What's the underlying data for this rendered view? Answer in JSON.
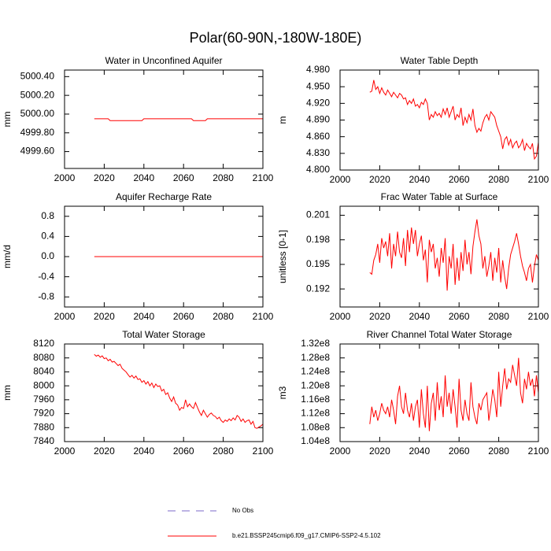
{
  "title": "Polar(60-90N,-180W-180E)",
  "legend": [
    {
      "name": "No Obs",
      "color": "#7b68c8",
      "dash": true
    },
    {
      "name": "b.e21.BSSP245cmip6.f09_g17.CMIP6-SSP2-4.5.102",
      "color": "#ff0000",
      "dash": false
    }
  ],
  "chart_data": [
    {
      "type": "line",
      "title": "Water in Unconfined Aquifer",
      "ylabel": "mm",
      "color": "#ff0000",
      "xlim": [
        2000,
        2100
      ],
      "xticks": [
        2000,
        2020,
        2040,
        2060,
        2080,
        2100
      ],
      "ylim": [
        4999.42,
        5000.47
      ],
      "yticks": [
        {
          "value": 4999.6,
          "label": "4999.60"
        },
        {
          "value": 4999.8,
          "label": "4999.80"
        },
        {
          "value": 5000.0,
          "label": "5000.00"
        },
        {
          "value": 5000.2,
          "label": "5000.20"
        },
        {
          "value": 5000.4,
          "label": "5000.40"
        }
      ],
      "x": [
        2015,
        2016,
        2017,
        2018,
        2019,
        2020,
        2021,
        2022,
        2023,
        2024,
        2025,
        2026,
        2027,
        2028,
        2029,
        2030,
        2031,
        2032,
        2033,
        2034,
        2035,
        2036,
        2037,
        2038,
        2039,
        2040,
        2041,
        2042,
        2043,
        2044,
        2045,
        2046,
        2047,
        2048,
        2049,
        2050,
        2051,
        2052,
        2053,
        2054,
        2055,
        2056,
        2057,
        2058,
        2059,
        2060,
        2061,
        2062,
        2063,
        2064,
        2065,
        2066,
        2067,
        2068,
        2069,
        2070,
        2071,
        2072,
        2073,
        2074,
        2075,
        2076,
        2077,
        2078,
        2079,
        2080,
        2081,
        2082,
        2083,
        2084,
        2085,
        2086,
        2087,
        2088,
        2089,
        2090,
        2091,
        2092,
        2093,
        2094,
        2095,
        2096,
        2097,
        2098,
        2099,
        2100
      ],
      "values": [
        4999.95,
        4999.95,
        4999.95,
        4999.95,
        4999.95,
        4999.95,
        4999.95,
        4999.95,
        4999.93,
        4999.93,
        4999.93,
        4999.93,
        4999.93,
        4999.93,
        4999.93,
        4999.93,
        4999.93,
        4999.93,
        4999.93,
        4999.93,
        4999.93,
        4999.93,
        4999.93,
        4999.93,
        4999.93,
        4999.95,
        4999.95,
        4999.95,
        4999.95,
        4999.95,
        4999.95,
        4999.95,
        4999.95,
        4999.95,
        4999.95,
        4999.95,
        4999.95,
        4999.95,
        4999.95,
        4999.95,
        4999.95,
        4999.95,
        4999.95,
        4999.95,
        4999.95,
        4999.95,
        4999.95,
        4999.95,
        4999.95,
        4999.95,
        4999.93,
        4999.93,
        4999.93,
        4999.93,
        4999.93,
        4999.93,
        4999.93,
        4999.95,
        4999.95,
        4999.95,
        4999.95,
        4999.95,
        4999.95,
        4999.95,
        4999.95,
        4999.95,
        4999.95,
        4999.95,
        4999.95,
        4999.95,
        4999.95,
        4999.95,
        4999.95,
        4999.95,
        4999.95,
        4999.95,
        4999.95,
        4999.95,
        4999.95,
        4999.95,
        4999.95,
        4999.95,
        4999.95,
        4999.95,
        4999.95,
        4999.95
      ]
    },
    {
      "type": "line",
      "title": "Water Table Depth",
      "ylabel": "m",
      "color": "#ff0000",
      "xlim": [
        2000,
        2100
      ],
      "xticks": [
        2000,
        2020,
        2040,
        2060,
        2080,
        2100
      ],
      "ylim": [
        4.8,
        4.98
      ],
      "yticks": [
        {
          "value": 4.8,
          "label": "4.800"
        },
        {
          "value": 4.83,
          "label": "4.830"
        },
        {
          "value": 4.86,
          "label": "4.860"
        },
        {
          "value": 4.89,
          "label": "4.890"
        },
        {
          "value": 4.92,
          "label": "4.920"
        },
        {
          "value": 4.95,
          "label": "4.950"
        },
        {
          "value": 4.98,
          "label": "4.980"
        }
      ],
      "x": [
        2015,
        2016,
        2017,
        2018,
        2019,
        2020,
        2021,
        2022,
        2023,
        2024,
        2025,
        2026,
        2027,
        2028,
        2029,
        2030,
        2031,
        2032,
        2033,
        2034,
        2035,
        2036,
        2037,
        2038,
        2039,
        2040,
        2041,
        2042,
        2043,
        2044,
        2045,
        2046,
        2047,
        2048,
        2049,
        2050,
        2051,
        2052,
        2053,
        2054,
        2055,
        2056,
        2057,
        2058,
        2059,
        2060,
        2061,
        2062,
        2063,
        2064,
        2065,
        2066,
        2067,
        2068,
        2069,
        2070,
        2071,
        2072,
        2073,
        2074,
        2075,
        2076,
        2077,
        2078,
        2079,
        2080,
        2081,
        2082,
        2083,
        2084,
        2085,
        2086,
        2087,
        2088,
        2089,
        2090,
        2091,
        2092,
        2093,
        2094,
        2095,
        2096,
        2097,
        2098,
        2099,
        2100
      ],
      "values": [
        4.94,
        4.942,
        4.962,
        4.945,
        4.95,
        4.938,
        4.948,
        4.94,
        4.935,
        4.944,
        4.938,
        4.932,
        4.94,
        4.935,
        4.93,
        4.938,
        4.935,
        4.928,
        4.93,
        4.918,
        4.925,
        4.92,
        4.928,
        4.915,
        4.918,
        4.912,
        4.922,
        4.918,
        4.928,
        4.92,
        4.89,
        4.9,
        4.895,
        4.905,
        4.898,
        4.902,
        4.895,
        4.91,
        4.9,
        4.912,
        4.895,
        4.905,
        4.915,
        4.89,
        4.9,
        4.895,
        4.912,
        4.88,
        4.895,
        4.885,
        4.9,
        4.89,
        4.91,
        4.88,
        4.868,
        4.875,
        4.87,
        4.885,
        4.895,
        4.9,
        4.89,
        4.905,
        4.9,
        4.895,
        4.88,
        4.87,
        4.86,
        4.838,
        4.855,
        4.86,
        4.845,
        4.855,
        4.84,
        4.848,
        4.852,
        4.84,
        4.845,
        4.855,
        4.835,
        4.848,
        4.842,
        4.838,
        4.848,
        4.82,
        4.825,
        4.85
      ]
    },
    {
      "type": "line",
      "title": "Aquifer Recharge Rate",
      "ylabel": "mm/d",
      "color": "#ff0000",
      "xlim": [
        2000,
        2100
      ],
      "xticks": [
        2000,
        2020,
        2040,
        2060,
        2080,
        2100
      ],
      "ylim": [
        -1.0,
        1.0
      ],
      "yticks": [
        -0.8,
        -0.4,
        {
          "value": 0,
          "label": "0.0"
        },
        0.4,
        0.8
      ],
      "x": [
        2015,
        2016,
        2017,
        2018,
        2019,
        2020,
        2021,
        2022,
        2023,
        2024,
        2025,
        2026,
        2027,
        2028,
        2029,
        2030,
        2031,
        2032,
        2033,
        2034,
        2035,
        2036,
        2037,
        2038,
        2039,
        2040,
        2041,
        2042,
        2043,
        2044,
        2045,
        2046,
        2047,
        2048,
        2049,
        2050,
        2051,
        2052,
        2053,
        2054,
        2055,
        2056,
        2057,
        2058,
        2059,
        2060,
        2061,
        2062,
        2063,
        2064,
        2065,
        2066,
        2067,
        2068,
        2069,
        2070,
        2071,
        2072,
        2073,
        2074,
        2075,
        2076,
        2077,
        2078,
        2079,
        2080,
        2081,
        2082,
        2083,
        2084,
        2085,
        2086,
        2087,
        2088,
        2089,
        2090,
        2091,
        2092,
        2093,
        2094,
        2095,
        2096,
        2097,
        2098,
        2099,
        2100
      ],
      "values": [
        0,
        0,
        0,
        0,
        0,
        0,
        0,
        0,
        0,
        0,
        0,
        0,
        0,
        0,
        0,
        0,
        0,
        0,
        0,
        0,
        0,
        0,
        0,
        0,
        0,
        0,
        0,
        0,
        0,
        0,
        0,
        0,
        0,
        0,
        0,
        0,
        0,
        0,
        0,
        0,
        0,
        0,
        0,
        0,
        0,
        0,
        0,
        0,
        0,
        0,
        0,
        0,
        0,
        0,
        0,
        0,
        0,
        0,
        0,
        0,
        0,
        0,
        0,
        0,
        0,
        0,
        0,
        0,
        0,
        0,
        0,
        0,
        0,
        0,
        0,
        0,
        0,
        0,
        0,
        0,
        0,
        0,
        0,
        0,
        0,
        0
      ]
    },
    {
      "type": "line",
      "title": "Frac Water Table at Surface",
      "ylabel": "unitless [0-1]",
      "color": "#ff0000",
      "xlim": [
        2000,
        2100
      ],
      "xticks": [
        2000,
        2020,
        2040,
        2060,
        2080,
        2100
      ],
      "ylim": [
        0.1898,
        0.2021
      ],
      "yticks": [
        0.192,
        0.195,
        0.198,
        0.201
      ],
      "x": [
        2015,
        2016,
        2017,
        2018,
        2019,
        2020,
        2021,
        2022,
        2023,
        2024,
        2025,
        2026,
        2027,
        2028,
        2029,
        2030,
        2031,
        2032,
        2033,
        2034,
        2035,
        2036,
        2037,
        2038,
        2039,
        2040,
        2041,
        2042,
        2043,
        2044,
        2045,
        2046,
        2047,
        2048,
        2049,
        2050,
        2051,
        2052,
        2053,
        2054,
        2055,
        2056,
        2057,
        2058,
        2059,
        2060,
        2061,
        2062,
        2063,
        2064,
        2065,
        2066,
        2067,
        2068,
        2069,
        2070,
        2071,
        2072,
        2073,
        2074,
        2075,
        2076,
        2077,
        2078,
        2079,
        2080,
        2081,
        2082,
        2083,
        2084,
        2085,
        2086,
        2087,
        2088,
        2089,
        2090,
        2091,
        2092,
        2093,
        2094,
        2095,
        2096,
        2097,
        2098,
        2099,
        2100
      ],
      "values": [
        0.194,
        0.1938,
        0.1955,
        0.1962,
        0.1975,
        0.1952,
        0.1982,
        0.197,
        0.1978,
        0.196,
        0.1988,
        0.1945,
        0.1975,
        0.196,
        0.199,
        0.1965,
        0.1958,
        0.1982,
        0.1948,
        0.1992,
        0.1965,
        0.1995,
        0.1975,
        0.1992,
        0.196,
        0.1975,
        0.1985,
        0.1955,
        0.1968,
        0.1928,
        0.198,
        0.1965,
        0.1975,
        0.1945,
        0.1958,
        0.1935,
        0.197,
        0.1952,
        0.1982,
        0.1918,
        0.196,
        0.1945,
        0.1975,
        0.1925,
        0.1958,
        0.193,
        0.1965,
        0.1942,
        0.198,
        0.195,
        0.1965,
        0.1938,
        0.1972,
        0.199,
        0.2005,
        0.1985,
        0.1975,
        0.1945,
        0.196,
        0.1935,
        0.1948,
        0.1965,
        0.193,
        0.1958,
        0.194,
        0.197,
        0.1928,
        0.1955,
        0.1935,
        0.192,
        0.1945,
        0.1962,
        0.197,
        0.1978,
        0.1988,
        0.1975,
        0.196,
        0.1948,
        0.194,
        0.193,
        0.1945,
        0.195,
        0.1928,
        0.1948,
        0.1962,
        0.1955
      ]
    },
    {
      "type": "line",
      "title": "Total Water Storage",
      "ylabel": "mm",
      "color": "#ff0000",
      "xlim": [
        2000,
        2100
      ],
      "xticks": [
        2000,
        2020,
        2040,
        2060,
        2080,
        2100
      ],
      "ylim": [
        7840,
        8120
      ],
      "yticks": [
        7840,
        7880,
        7920,
        7960,
        8000,
        8040,
        8080,
        8120
      ],
      "x": [
        2015,
        2016,
        2017,
        2018,
        2019,
        2020,
        2021,
        2022,
        2023,
        2024,
        2025,
        2026,
        2027,
        2028,
        2029,
        2030,
        2031,
        2032,
        2033,
        2034,
        2035,
        2036,
        2037,
        2038,
        2039,
        2040,
        2041,
        2042,
        2043,
        2044,
        2045,
        2046,
        2047,
        2048,
        2049,
        2050,
        2051,
        2052,
        2053,
        2054,
        2055,
        2056,
        2057,
        2058,
        2059,
        2060,
        2061,
        2062,
        2063,
        2064,
        2065,
        2066,
        2067,
        2068,
        2069,
        2070,
        2071,
        2072,
        2073,
        2074,
        2075,
        2076,
        2077,
        2078,
        2079,
        2080,
        2081,
        2082,
        2083,
        2084,
        2085,
        2086,
        2087,
        2088,
        2089,
        2090,
        2091,
        2092,
        2093,
        2094,
        2095,
        2096,
        2097,
        2098,
        2099,
        2100
      ],
      "values": [
        8090,
        8085,
        8088,
        8082,
        8086,
        8078,
        8080,
        8072,
        8076,
        8068,
        8070,
        8064,
        8058,
        8062,
        8050,
        8045,
        8040,
        8032,
        8025,
        8030,
        8022,
        8028,
        8018,
        8020,
        8010,
        8015,
        8005,
        8012,
        8000,
        8008,
        7995,
        8005,
        7998,
        8000,
        7985,
        7990,
        7975,
        7980,
        7965,
        7955,
        7968,
        7950,
        7945,
        7930,
        7938,
        7935,
        7960,
        7940,
        7948,
        7940,
        7935,
        7952,
        7938,
        7925,
        7915,
        7930,
        7920,
        7910,
        7918,
        7922,
        7915,
        7912,
        7905,
        7910,
        7900,
        7895,
        7902,
        7898,
        7905,
        7900,
        7908,
        7902,
        7915,
        7910,
        7898,
        7905,
        7895,
        7900,
        7902,
        7890,
        7898,
        7880,
        7878,
        7882,
        7885,
        7890
      ]
    },
    {
      "type": "line",
      "title": "River Channel Total Water Storage",
      "ylabel": "m3",
      "color": "#ff0000",
      "xlim": [
        2000,
        2100
      ],
      "xticks": [
        2000,
        2020,
        2040,
        2060,
        2080,
        2100
      ],
      "ylim": [
        104000000,
        132000000
      ],
      "yticks": [
        {
          "value": 104000000,
          "label": "1.04e8"
        },
        {
          "value": 108000000,
          "label": "1.08e8"
        },
        {
          "value": 112000000,
          "label": "1.12e8"
        },
        {
          "value": 116000000,
          "label": "1.16e8"
        },
        {
          "value": 120000000,
          "label": "1.20e8"
        },
        {
          "value": 124000000,
          "label": "1.24e8"
        },
        {
          "value": 128000000,
          "label": "1.28e8"
        },
        {
          "value": 132000000,
          "label": "1.32e8"
        }
      ],
      "x": [
        2015,
        2016,
        2017,
        2018,
        2019,
        2020,
        2021,
        2022,
        2023,
        2024,
        2025,
        2026,
        2027,
        2028,
        2029,
        2030,
        2031,
        2032,
        2033,
        2034,
        2035,
        2036,
        2037,
        2038,
        2039,
        2040,
        2041,
        2042,
        2043,
        2044,
        2045,
        2046,
        2047,
        2048,
        2049,
        2050,
        2051,
        2052,
        2053,
        2054,
        2055,
        2056,
        2057,
        2058,
        2059,
        2060,
        2061,
        2062,
        2063,
        2064,
        2065,
        2066,
        2067,
        2068,
        2069,
        2070,
        2071,
        2072,
        2073,
        2074,
        2075,
        2076,
        2077,
        2078,
        2079,
        2080,
        2081,
        2082,
        2083,
        2084,
        2085,
        2086,
        2087,
        2088,
        2089,
        2090,
        2091,
        2092,
        2093,
        2094,
        2095,
        2096,
        2097,
        2098,
        2099,
        2100
      ],
      "values": [
        109000000.0,
        114000000.0,
        111000000.0,
        113000000.0,
        110000000.0,
        112000000.0,
        115000000.0,
        113000000.0,
        112000000.0,
        114000000.0,
        111000000.0,
        116000000.0,
        113000000.0,
        109000000.0,
        117000000.0,
        120000000.0,
        114000000.0,
        112000000.0,
        118000000.0,
        113000000.0,
        111000000.0,
        115000000.0,
        110000000.0,
        114000000.0,
        116000000.0,
        108000000.0,
        119000000.0,
        112000000.0,
        108000000.0,
        120000000.0,
        107000000.0,
        115000000.0,
        118000000.0,
        110000000.0,
        121000000.0,
        113000000.0,
        117000000.0,
        111000000.0,
        123000000.0,
        114000000.0,
        118000000.0,
        112000000.0,
        119000000.0,
        114000000.0,
        108000000.0,
        122000000.0,
        113000000.0,
        110000000.0,
        116000000.0,
        112000000.0,
        110000000.0,
        121000000.0,
        114000000.0,
        111000000.0,
        109000000.0,
        115000000.0,
        113000000.0,
        116000000.0,
        117000000.0,
        118000000.0,
        110000000.0,
        114000000.0,
        119000000.0,
        116000000.0,
        111000000.0,
        124000000.0,
        114000000.0,
        120000000.0,
        125000000.0,
        119000000.0,
        122000000.0,
        121000000.0,
        126000000.0,
        123000000.0,
        120000000.0,
        128000000.0,
        118000000.0,
        115000000.0,
        122000000.0,
        119000000.0,
        124000000.0,
        120000000.0,
        122000000.0,
        117000000.0,
        123000000.0,
        118000000.0
      ]
    }
  ]
}
